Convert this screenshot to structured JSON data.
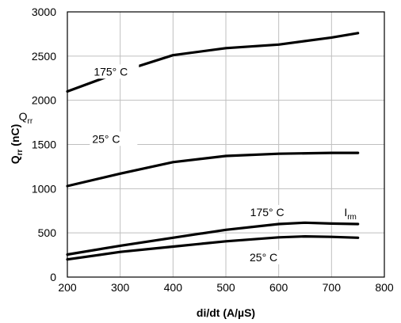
{
  "chart_data": {
    "type": "line",
    "xlabel": "di/dt (A/µS)",
    "ylabel_main": "Q",
    "ylabel_sub": "rr",
    "ylabel_unit": " (nC)",
    "xlim": [
      200,
      800
    ],
    "ylim": [
      0,
      3000
    ],
    "xticks": [
      200,
      300,
      400,
      500,
      600,
      700,
      800
    ],
    "yticks": [
      0,
      500,
      1000,
      1500,
      2000,
      2500,
      3000
    ],
    "grid": true,
    "series": [
      {
        "x": [
          200,
          300,
          400,
          500,
          600,
          700,
          750
        ],
        "values": [
          2100,
          2320,
          2510,
          2590,
          2630,
          2710,
          2760
        ]
      },
      {
        "x": [
          200,
          300,
          400,
          500,
          600,
          700,
          750
        ],
        "values": [
          1030,
          1170,
          1300,
          1370,
          1395,
          1405,
          1405
        ]
      },
      {
        "x": [
          200,
          300,
          400,
          500,
          600,
          650,
          700,
          750
        ],
        "values": [
          255,
          355,
          445,
          535,
          600,
          615,
          605,
          600
        ]
      },
      {
        "x": [
          200,
          300,
          400,
          500,
          600,
          650,
          700,
          750
        ],
        "values": [
          200,
          285,
          345,
          405,
          450,
          460,
          455,
          445
        ]
      }
    ],
    "annotations": [
      {
        "text": "175° C",
        "x": 250,
        "y": 2280
      },
      {
        "text": "Q",
        "sub": "rr",
        "x": 108,
        "y": 1775
      },
      {
        "text": "25° C",
        "x": 247,
        "y": 1520
      },
      {
        "text": "175° C",
        "x": 546,
        "y": 690
      },
      {
        "text": "I",
        "sub": "rm",
        "x": 724,
        "y": 690
      },
      {
        "text": "25° C",
        "x": 545,
        "y": 180
      }
    ]
  }
}
